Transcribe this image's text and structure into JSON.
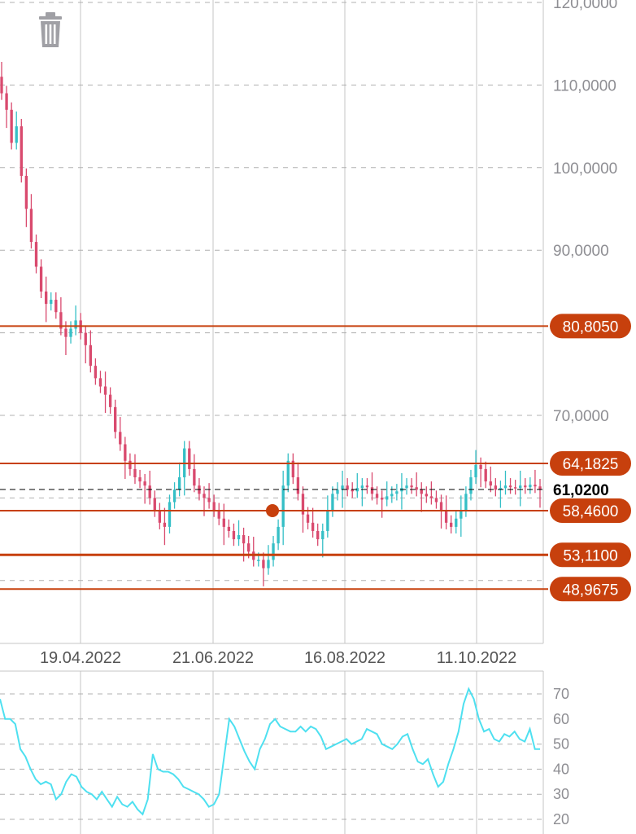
{
  "toolbar": {
    "delete_icon": "trash-icon"
  },
  "colors": {
    "up": "#35bfc6",
    "down": "#d94a6e",
    "level": "#c7400d",
    "rsi": "#4ee0f0",
    "grid": "#b8b8b8",
    "axis": "#8e8e93"
  },
  "chart_data": [
    {
      "type": "candlestick",
      "title": "",
      "y_ticks": [
        "120,0000",
        "110,0000",
        "100,0000",
        "90,0000",
        "70,0000"
      ],
      "ylim": [
        45,
        120
      ],
      "x_ticks": [
        "19.04.2022",
        "21.06.2022",
        "16.08.2022",
        "11.10.2022"
      ],
      "x_dates": [
        "2022-02-24",
        "2022-10-31"
      ],
      "current_price": {
        "value": 61.02,
        "label": "61,0200"
      },
      "levels": [
        {
          "value": 80.805,
          "label": "80,8050"
        },
        {
          "value": 64.1825,
          "label": "64,1825"
        },
        {
          "value": 58.46,
          "label": "58,4600"
        },
        {
          "value": 53.11,
          "label": "53,1100"
        },
        {
          "value": 48.9675,
          "label": "48,9675"
        }
      ],
      "closes": [
        109,
        107,
        103,
        105,
        99,
        95,
        91,
        88,
        85,
        83.5,
        84,
        82.5,
        80.5,
        79.5,
        80.5,
        81.5,
        80,
        78.5,
        76,
        74.5,
        73.5,
        72.5,
        71,
        68,
        66.5,
        64.5,
        63.5,
        62.5,
        62,
        61.5,
        60,
        58.5,
        57,
        56.5,
        59.5,
        61,
        62.5,
        66,
        63.5,
        61.5,
        60.5,
        60,
        59.5,
        58.5,
        57.5,
        56.5,
        56,
        55,
        55.5,
        54.5,
        53.5,
        52.5,
        52.5,
        51.5,
        52.5,
        54.5,
        56.5,
        61.5,
        64.5,
        62.5,
        60.5,
        58,
        57,
        56,
        55,
        56,
        58.5,
        60.5,
        61,
        61.5,
        61,
        60.8,
        61.2,
        61.5,
        61.3,
        60.5,
        60,
        59.8,
        60.2,
        60.5,
        60.8,
        61.2,
        61.5,
        61.3,
        61,
        60.5,
        60.2,
        60,
        59.5,
        58.5,
        57,
        56.5,
        57.5,
        58.5,
        60.5,
        62.5,
        64,
        63.5,
        62,
        61.5,
        61,
        61.2,
        61.5,
        61.3,
        61.2,
        61.5,
        61.3,
        61.6,
        61.4,
        61.02
      ],
      "rsi": {
        "y_ticks": [
          "70",
          "60",
          "50",
          "40",
          "30",
          "20"
        ],
        "ylim": [
          18,
          77
        ],
        "values": [
          68,
          60,
          60,
          58,
          48,
          45,
          40,
          36,
          34,
          35,
          34,
          28,
          30,
          35,
          38,
          37,
          33,
          31,
          30,
          28,
          31,
          28,
          25,
          29,
          26,
          25,
          27,
          24,
          22,
          28,
          46,
          40,
          39,
          39,
          38,
          36,
          33,
          32,
          31,
          30,
          28,
          25,
          26,
          30,
          45,
          60,
          57,
          52,
          47,
          43,
          40,
          48,
          52,
          58,
          60,
          57,
          56,
          55,
          55,
          57,
          55,
          57,
          56,
          53,
          48,
          49,
          50,
          51,
          52,
          50,
          51,
          52,
          56,
          55,
          54,
          50,
          49,
          48,
          50,
          53,
          54,
          48,
          43,
          42,
          44,
          38,
          33,
          35,
          42,
          48,
          55,
          66,
          72,
          68,
          60,
          55,
          56,
          52,
          51,
          54,
          53,
          55,
          52,
          51,
          56,
          48,
          48
        ]
      }
    }
  ]
}
